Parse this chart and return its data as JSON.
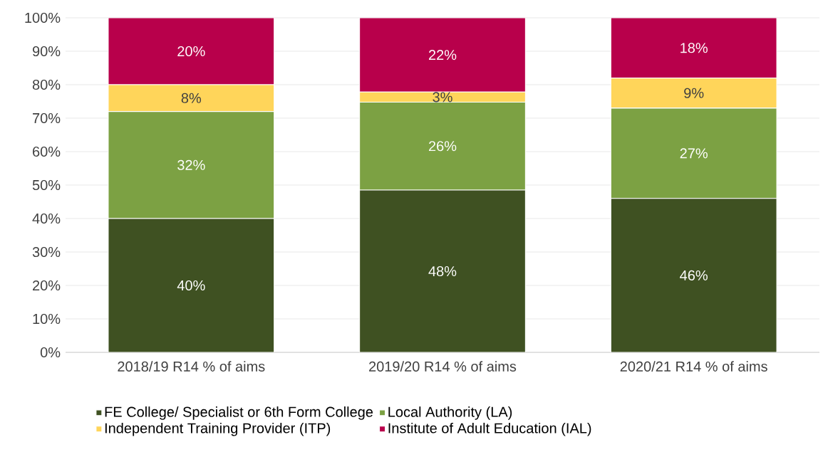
{
  "chart_data": {
    "type": "bar",
    "stacked": true,
    "categories": [
      "2018/19 R14 % of aims",
      "2019/20 R14 % of aims",
      "2020/21 R14 % of aims"
    ],
    "series": [
      {
        "name": "FE College/ Specialist or 6th Form College",
        "color": "#3f5122",
        "values": [
          40,
          48.5,
          46
        ],
        "value_labels": [
          "40%",
          "48%",
          "46%"
        ]
      },
      {
        "name": "Local Authority (LA)",
        "color": "#7ca143",
        "values": [
          32,
          26.3,
          27
        ],
        "value_labels": [
          "32%",
          "26%",
          "27%"
        ]
      },
      {
        "name": "Independent Training Provider (ITP)",
        "color": "#ffd55a",
        "values": [
          8,
          3,
          9
        ],
        "value_labels": [
          "8%",
          "3%",
          "9%"
        ]
      },
      {
        "name": "Institute of Adult Education (IAL)",
        "color": "#b8004b",
        "values": [
          20,
          22.2,
          18
        ],
        "value_labels": [
          "20%",
          "22%",
          "18%"
        ]
      }
    ],
    "ylim": [
      0,
      100
    ],
    "yticks": [
      {
        "value": 0,
        "label": "0%"
      },
      {
        "value": 10,
        "label": "10%"
      },
      {
        "value": 20,
        "label": "20%"
      },
      {
        "value": 30,
        "label": "30%"
      },
      {
        "value": 40,
        "label": "40%"
      },
      {
        "value": 50,
        "label": "50%"
      },
      {
        "value": 60,
        "label": "60%"
      },
      {
        "value": 70,
        "label": "70%"
      },
      {
        "value": 80,
        "label": "80%"
      },
      {
        "value": 90,
        "label": "90%"
      },
      {
        "value": 100,
        "label": "100%"
      }
    ],
    "grid": "y",
    "legend": "bottom"
  }
}
